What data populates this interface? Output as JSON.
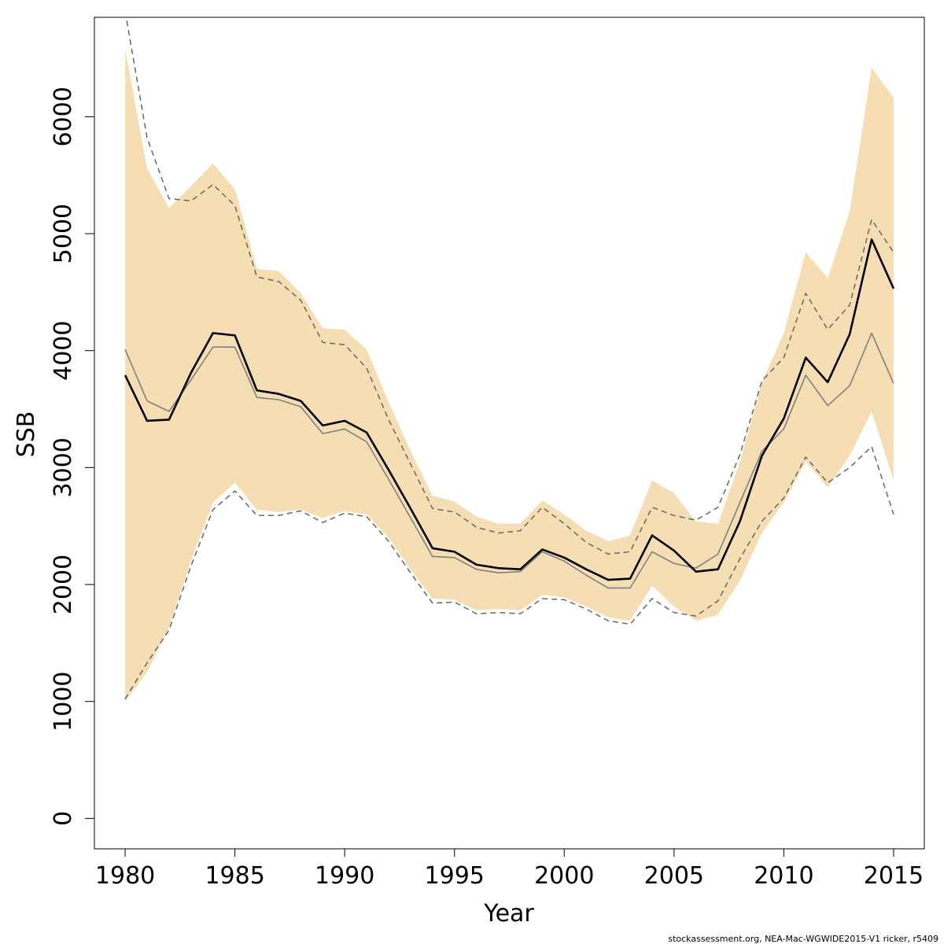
{
  "chart_data": {
    "type": "line",
    "title": "",
    "xlabel": "Year",
    "ylabel": "SSB",
    "xlim": [
      1978.6,
      2016.4
    ],
    "ylim": [
      -260,
      6850
    ],
    "xticks": [
      1980,
      1985,
      1990,
      1995,
      2000,
      2005,
      2010,
      2015
    ],
    "yticks": [
      0,
      1000,
      2000,
      3000,
      4000,
      5000,
      6000
    ],
    "years": [
      1980,
      1981,
      1982,
      1983,
      1984,
      1985,
      1986,
      1987,
      1988,
      1989,
      1990,
      1991,
      1992,
      1993,
      1994,
      1995,
      1996,
      1997,
      1998,
      1999,
      2000,
      2001,
      2002,
      2003,
      2004,
      2005,
      2006,
      2007,
      2008,
      2009,
      2010,
      2011,
      2012,
      2013,
      2014,
      2015
    ],
    "band": {
      "name": "confidence interval",
      "color": "#f5deb3",
      "upper": [
        6580,
        5560,
        5220,
        5410,
        5600,
        5380,
        4700,
        4680,
        4490,
        4190,
        4180,
        4010,
        3560,
        3140,
        2760,
        2710,
        2580,
        2520,
        2520,
        2720,
        2600,
        2460,
        2370,
        2420,
        2890,
        2780,
        2540,
        2520,
        3050,
        3730,
        4150,
        4840,
        4620,
        5190,
        6420,
        6160
      ],
      "lower": [
        1000,
        1250,
        1630,
        2200,
        2700,
        2870,
        2640,
        2620,
        2640,
        2570,
        2630,
        2600,
        2400,
        2130,
        1880,
        1870,
        1780,
        1790,
        1780,
        1910,
        1890,
        1810,
        1720,
        1690,
        1990,
        1810,
        1690,
        1740,
        2030,
        2440,
        2700,
        3050,
        2830,
        3100,
        3480,
        2890
      ]
    },
    "series": [
      {
        "name": "estimate",
        "style": "solid-thick",
        "color": "#000000",
        "values": [
          3790,
          3400,
          3410,
          3810,
          4150,
          4130,
          3660,
          3630,
          3570,
          3360,
          3400,
          3300,
          2980,
          2650,
          2310,
          2280,
          2170,
          2140,
          2130,
          2300,
          2230,
          2130,
          2040,
          2050,
          2420,
          2290,
          2110,
          2130,
          2540,
          3100,
          3420,
          3940,
          3730,
          4140,
          4950,
          4530
        ]
      },
      {
        "name": "alternative estimate",
        "style": "solid-thin",
        "color": "#808080",
        "values": [
          4010,
          3570,
          3480,
          3750,
          4030,
          4030,
          3600,
          3580,
          3520,
          3290,
          3330,
          3220,
          2900,
          2570,
          2240,
          2230,
          2130,
          2100,
          2110,
          2280,
          2200,
          2080,
          1970,
          1970,
          2280,
          2180,
          2140,
          2260,
          2700,
          3140,
          3330,
          3790,
          3530,
          3700,
          4150,
          3720
        ]
      },
      {
        "name": "upper bound",
        "style": "dashed",
        "color": "#666666",
        "values": [
          6900,
          5820,
          5300,
          5280,
          5420,
          5240,
          4630,
          4590,
          4430,
          4070,
          4050,
          3850,
          3410,
          3030,
          2650,
          2620,
          2490,
          2440,
          2460,
          2660,
          2520,
          2360,
          2260,
          2280,
          2660,
          2590,
          2550,
          2660,
          3110,
          3740,
          3940,
          4490,
          4180,
          4390,
          5120,
          4840
        ]
      },
      {
        "name": "lower bound",
        "style": "dashed",
        "color": "#666666",
        "values": [
          1020,
          1330,
          1610,
          2160,
          2640,
          2800,
          2590,
          2590,
          2630,
          2530,
          2610,
          2580,
          2370,
          2100,
          1840,
          1850,
          1750,
          1760,
          1750,
          1880,
          1870,
          1790,
          1690,
          1660,
          1880,
          1760,
          1730,
          1860,
          2220,
          2540,
          2740,
          3090,
          2870,
          3000,
          3180,
          2600
        ]
      }
    ]
  },
  "footer_text": "stockassessment.org, NEA-Mac-WGWIDE2015-V1  ricker, r5409"
}
